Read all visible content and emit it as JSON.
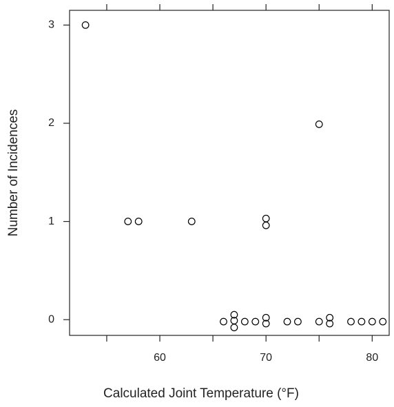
{
  "chart_data": {
    "type": "scatter",
    "xlabel": "Calculated Joint Temperature (°F)",
    "ylabel": "Number of Incidences",
    "x": [
      53,
      57,
      58,
      63,
      66,
      67,
      67,
      67,
      68,
      69,
      70,
      70,
      70,
      70,
      72,
      73,
      75,
      75,
      76,
      76,
      78,
      79,
      80,
      81
    ],
    "series": [
      {
        "color": "#000000",
        "values": [
          3,
          1,
          1,
          1,
          -0.02,
          0.05,
          -0.01,
          -0.08,
          -0.02,
          -0.02,
          1.03,
          0.96,
          0.02,
          -0.04,
          -0.02,
          -0.02,
          1.99,
          -0.02,
          0.02,
          -0.04,
          -0.02,
          -0.02,
          -0.02,
          -0.02
        ]
      }
    ],
    "xlim": [
      51.5,
      81.6
    ],
    "ylim": [
      -0.16,
      3.15
    ],
    "xticks": [
      60,
      70,
      80
    ],
    "xminorticks": [
      55,
      65,
      75
    ],
    "yticks": [
      0,
      1,
      2,
      3
    ]
  }
}
